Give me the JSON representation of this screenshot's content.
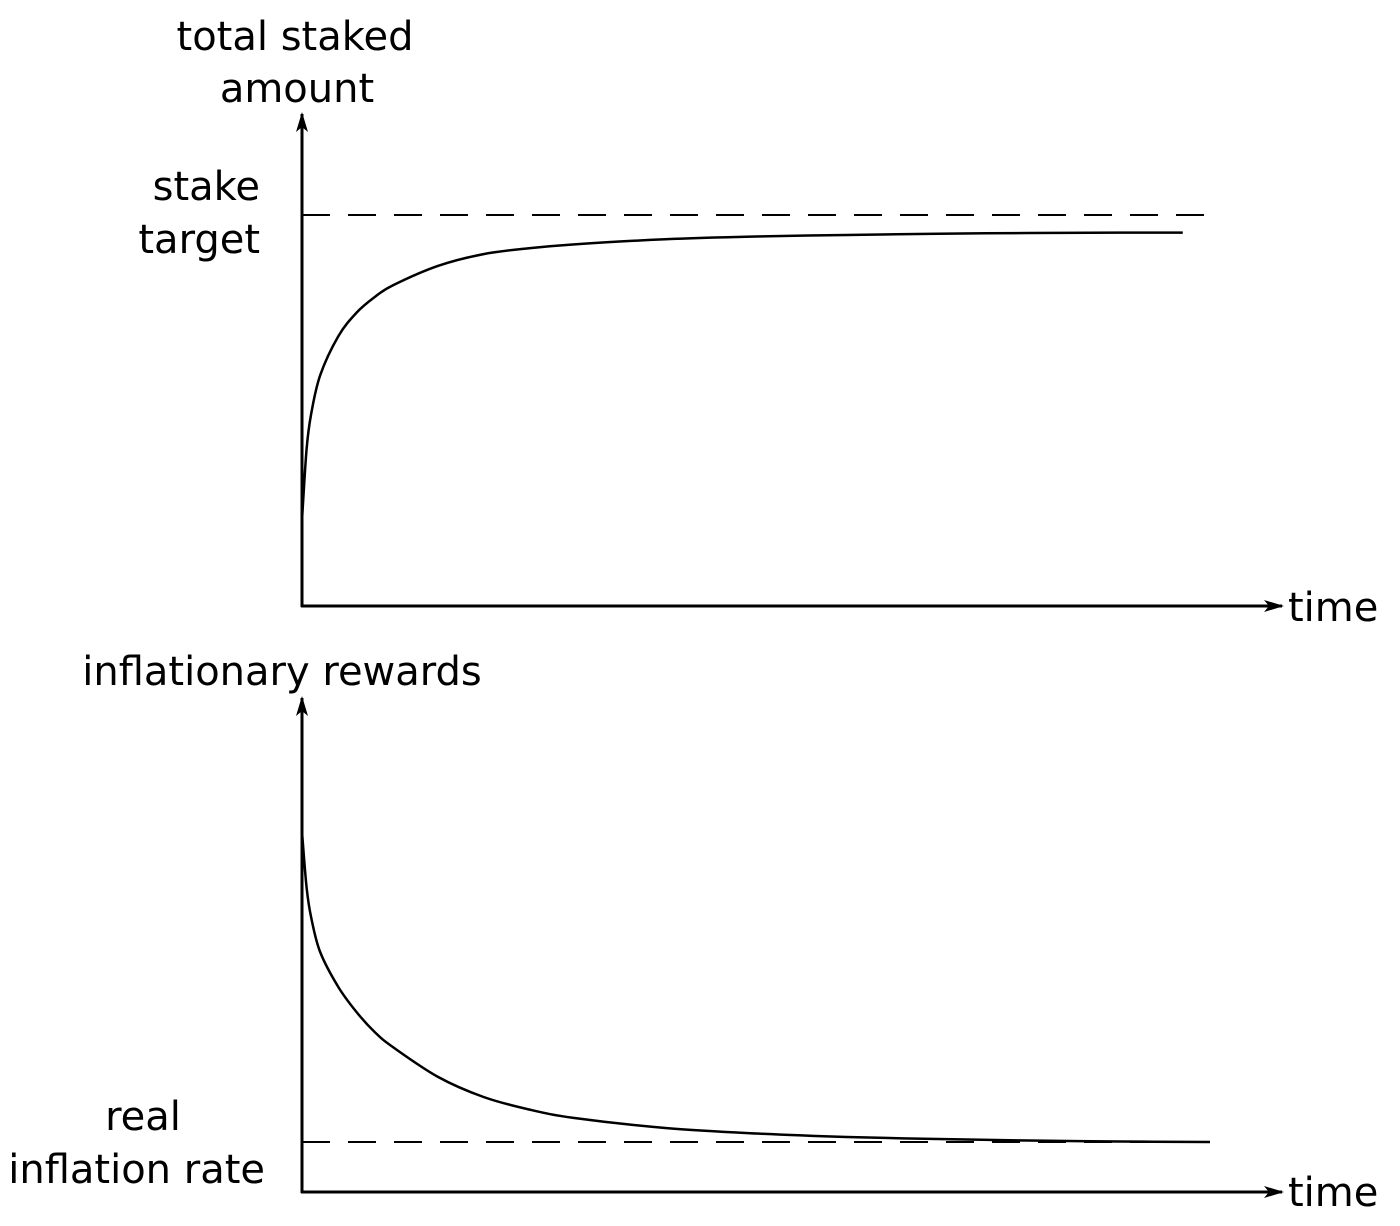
{
  "colors": {
    "ink": "#000000",
    "background": "#ffffff"
  },
  "chart_data": [
    {
      "type": "line",
      "y_axis_label": [
        "total staked",
        "amount"
      ],
      "x_axis_label": "time",
      "reference_line": {
        "label": [
          "stake",
          "target"
        ],
        "style": "dashed",
        "y": 1.0
      },
      "ylim": [
        0,
        1.0
      ],
      "xlim": [
        0,
        1.0
      ],
      "grid": false,
      "legend": "none",
      "series": [
        {
          "shape": "rising, concave, approaching the stake target",
          "x": [
            0,
            0.005,
            0.01,
            0.02,
            0.04,
            0.06,
            0.08,
            0.1,
            0.15,
            0.2,
            0.25,
            0.3,
            0.4,
            0.5,
            0.6,
            0.7,
            0.8,
            0.9,
            0.97
          ],
          "y": [
            0.22,
            0.4,
            0.49,
            0.59,
            0.69,
            0.75,
            0.79,
            0.82,
            0.87,
            0.9,
            0.915,
            0.925,
            0.938,
            0.945,
            0.949,
            0.952,
            0.954,
            0.955,
            0.955
          ]
        }
      ]
    },
    {
      "type": "line",
      "y_axis_label": [
        "inflationary rewards"
      ],
      "x_axis_label": "time",
      "reference_line": {
        "label": [
          "real",
          "inflation rate"
        ],
        "style": "dashed",
        "y": 0.1
      },
      "ylim": [
        0,
        1.0
      ],
      "xlim": [
        0,
        1.0
      ],
      "grid": false,
      "legend": "none",
      "series": [
        {
          "shape": "falling, convex, approaching the real inflation rate",
          "x": [
            0,
            0.005,
            0.01,
            0.02,
            0.04,
            0.06,
            0.08,
            0.1,
            0.15,
            0.2,
            0.25,
            0.3,
            0.4,
            0.5,
            0.6,
            0.7,
            0.8,
            0.9,
            1.0
          ],
          "y": [
            0.72,
            0.61,
            0.55,
            0.48,
            0.41,
            0.36,
            0.32,
            0.29,
            0.23,
            0.19,
            0.165,
            0.148,
            0.128,
            0.117,
            0.11,
            0.106,
            0.103,
            0.101,
            0.1
          ]
        }
      ]
    }
  ]
}
